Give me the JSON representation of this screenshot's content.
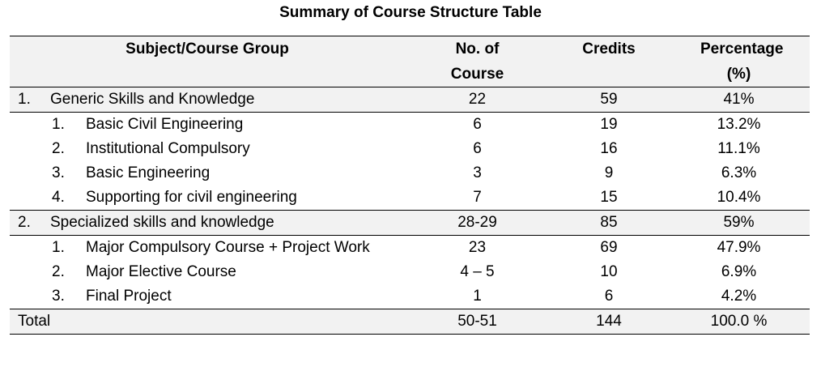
{
  "title": "Summary of Course Structure Table",
  "headers": {
    "group": "Subject/Course Group",
    "courses": "No. of Course",
    "credits": "Credits",
    "percentage": "Percentage (%)"
  },
  "rows": [
    {
      "level": 1,
      "marker": "1.",
      "label": "Generic Skills and Knowledge",
      "courses": "22",
      "credits": "59",
      "percentage": "41%"
    },
    {
      "level": 2,
      "marker": "1.",
      "label": "Basic Civil Engineering",
      "courses": "6",
      "credits": "19",
      "percentage": "13.2%"
    },
    {
      "level": 2,
      "marker": "2.",
      "label": "Institutional Compulsory",
      "courses": "6",
      "credits": "16",
      "percentage": "11.1%"
    },
    {
      "level": 2,
      "marker": "3.",
      "label": "Basic Engineering",
      "courses": "3",
      "credits": "9",
      "percentage": "6.3%"
    },
    {
      "level": 2,
      "marker": "4.",
      "label": "Supporting for civil engineering",
      "courses": "7",
      "credits": "15",
      "percentage": "10.4%"
    },
    {
      "level": 1,
      "marker": "2.",
      "label": "Specialized skills and knowledge",
      "courses": "28-29",
      "credits": "85",
      "percentage": "59%"
    },
    {
      "level": 2,
      "marker": "1.",
      "label": "Major Compulsory Course + Project Work",
      "courses": "23",
      "credits": "69",
      "percentage": "47.9%"
    },
    {
      "level": 2,
      "marker": "2.",
      "label": "Major Elective Course",
      "courses": "4 – 5",
      "credits": "10",
      "percentage": "6.9%"
    },
    {
      "level": 2,
      "marker": "3.",
      "label": "Final Project",
      "courses": "1",
      "credits": "6",
      "percentage": "4.2%"
    }
  ],
  "total": {
    "label": "Total",
    "courses": "50-51",
    "credits": "144",
    "percentage": "100.0 %"
  }
}
